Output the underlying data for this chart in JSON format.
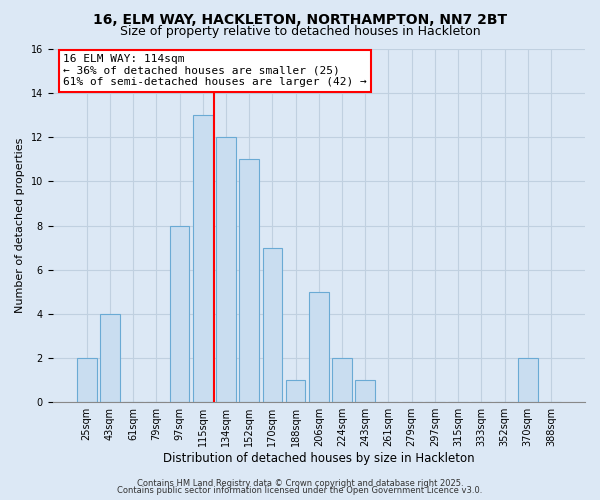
{
  "title1": "16, ELM WAY, HACKLETON, NORTHAMPTON, NN7 2BT",
  "title2": "Size of property relative to detached houses in Hackleton",
  "xlabel": "Distribution of detached houses by size in Hackleton",
  "ylabel": "Number of detached properties",
  "bar_labels": [
    "25sqm",
    "43sqm",
    "61sqm",
    "79sqm",
    "97sqm",
    "115sqm",
    "134sqm",
    "152sqm",
    "170sqm",
    "188sqm",
    "206sqm",
    "224sqm",
    "243sqm",
    "261sqm",
    "279sqm",
    "297sqm",
    "315sqm",
    "333sqm",
    "352sqm",
    "370sqm",
    "388sqm"
  ],
  "bar_values": [
    2,
    4,
    0,
    0,
    8,
    13,
    12,
    11,
    7,
    1,
    5,
    2,
    1,
    0,
    0,
    0,
    0,
    0,
    0,
    2,
    0
  ],
  "bar_color": "#c9ddf0",
  "bar_edgecolor": "#6aaad4",
  "redline_index": 5,
  "annotation_line1": "16 ELM WAY: 114sqm",
  "annotation_line2": "← 36% of detached houses are smaller (25)",
  "annotation_line3": "61% of semi-detached houses are larger (42) →",
  "ylim_max": 16,
  "background_color": "#dce8f5",
  "grid_color": "#c0d0e0",
  "footer1": "Contains HM Land Registry data © Crown copyright and database right 2025.",
  "footer2": "Contains public sector information licensed under the Open Government Licence v3.0.",
  "title1_fontsize": 10,
  "title2_fontsize": 9,
  "xlabel_fontsize": 8.5,
  "ylabel_fontsize": 8,
  "tick_fontsize": 7,
  "annotation_fontsize": 8,
  "footer_fontsize": 6
}
